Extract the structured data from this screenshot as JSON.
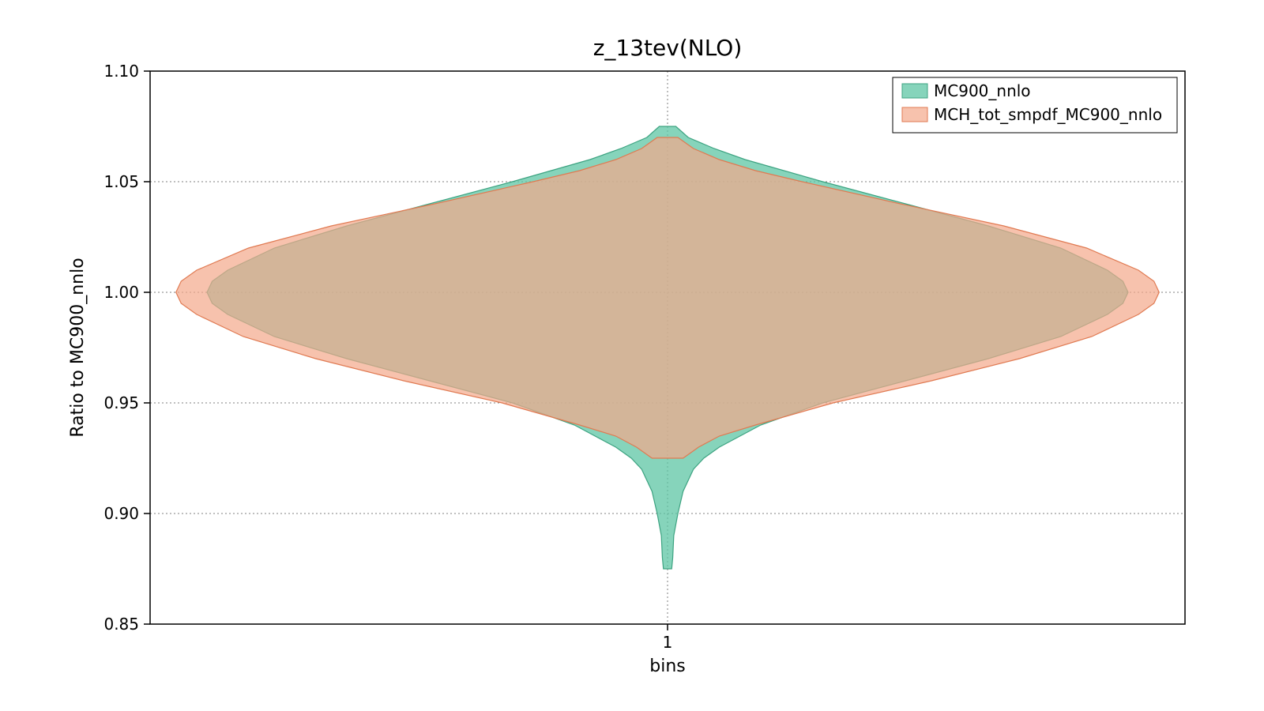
{
  "chart": {
    "type": "violin",
    "title": "z_13tev(NLO)",
    "title_fontsize": 28,
    "xlabel": "bins",
    "ylabel": "Ratio to MC900_nnlo",
    "label_fontsize": 22,
    "tick_fontsize": 20,
    "background_color": "#ffffff",
    "grid_color": "#7f7f7f",
    "grid_dash": "2,3",
    "border_color": "#000000",
    "xlim": [
      0.5,
      1.5
    ],
    "ylim": [
      0.85,
      1.1
    ],
    "yticks": [
      0.85,
      0.9,
      0.95,
      1.0,
      1.05,
      1.1
    ],
    "ytick_labels": [
      "0.85",
      "0.90",
      "0.95",
      "1.00",
      "1.05",
      "1.10"
    ],
    "xticks": [
      1
    ],
    "xtick_labels": [
      "1"
    ],
    "series": [
      {
        "name": "MC900_nnlo",
        "fill_color": "#5ec6a4",
        "fill_opacity": 0.75,
        "stroke_color": "#3da381",
        "stroke_width": 1.2,
        "center": 1.0,
        "profile": [
          [
            0.875,
            0.004
          ],
          [
            0.88,
            0.005
          ],
          [
            0.89,
            0.006
          ],
          [
            0.9,
            0.01
          ],
          [
            0.91,
            0.015
          ],
          [
            0.92,
            0.025
          ],
          [
            0.925,
            0.035
          ],
          [
            0.93,
            0.05
          ],
          [
            0.94,
            0.09
          ],
          [
            0.95,
            0.15
          ],
          [
            0.96,
            0.23
          ],
          [
            0.97,
            0.31
          ],
          [
            0.98,
            0.38
          ],
          [
            0.99,
            0.425
          ],
          [
            0.995,
            0.44
          ],
          [
            1.0,
            0.445
          ],
          [
            1.005,
            0.44
          ],
          [
            1.01,
            0.425
          ],
          [
            1.02,
            0.38
          ],
          [
            1.03,
            0.31
          ],
          [
            1.04,
            0.23
          ],
          [
            1.05,
            0.15
          ],
          [
            1.06,
            0.075
          ],
          [
            1.065,
            0.045
          ],
          [
            1.07,
            0.02
          ],
          [
            1.075,
            0.008
          ]
        ]
      },
      {
        "name": "MCH_tot_smpdf_MC900_nnlo",
        "fill_color": "#f3a88a",
        "fill_opacity": 0.7,
        "stroke_color": "#e07a52",
        "stroke_width": 1.2,
        "center": 1.0,
        "profile": [
          [
            0.925,
            0.015
          ],
          [
            0.93,
            0.03
          ],
          [
            0.935,
            0.05
          ],
          [
            0.94,
            0.085
          ],
          [
            0.95,
            0.16
          ],
          [
            0.96,
            0.255
          ],
          [
            0.97,
            0.34
          ],
          [
            0.98,
            0.41
          ],
          [
            0.99,
            0.455
          ],
          [
            0.995,
            0.47
          ],
          [
            1.0,
            0.475
          ],
          [
            1.005,
            0.47
          ],
          [
            1.01,
            0.455
          ],
          [
            1.02,
            0.405
          ],
          [
            1.03,
            0.325
          ],
          [
            1.04,
            0.225
          ],
          [
            1.05,
            0.13
          ],
          [
            1.055,
            0.085
          ],
          [
            1.06,
            0.05
          ],
          [
            1.065,
            0.025
          ],
          [
            1.07,
            0.01
          ]
        ]
      }
    ],
    "legend": {
      "position": "top-right",
      "entries": [
        "MC900_nnlo",
        "MCH_tot_smpdf_MC900_nnlo"
      ]
    }
  }
}
